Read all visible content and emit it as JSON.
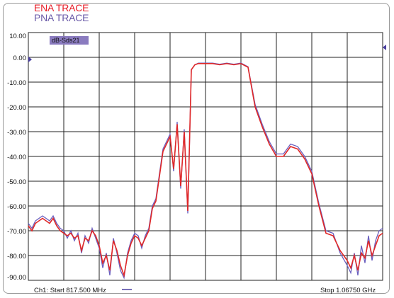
{
  "legend": {
    "ena_label": "ENA TRACE",
    "pna_label": "PNA TRACE"
  },
  "colors": {
    "ena": "#e02828",
    "pna": "#6a5fbf",
    "grid": "#202020",
    "badge_bg": "#8a7bbf"
  },
  "chart_data": {
    "type": "line",
    "trace_label": "dB-Sds21",
    "ylim": [
      -90,
      10
    ],
    "yticks": [
      "10.00",
      "0.00",
      "-10.00",
      "-20.00",
      "-30.00",
      "-40.00",
      "-50.00",
      "-60.00",
      "-70.00",
      "-80.00",
      "-90.00"
    ],
    "xlim": [
      0,
      10
    ],
    "x_divisions": 10,
    "grid": true,
    "start_label": "Ch1: Start  817.500 MHz",
    "stop_label": "Stop  1.06750 GHz",
    "series": [
      {
        "key": "ena",
        "x": [
          0,
          0.1,
          0.2,
          0.3,
          0.4,
          0.5,
          0.6,
          0.7,
          0.8,
          0.9,
          1.0,
          1.1,
          1.2,
          1.3,
          1.4,
          1.5,
          1.6,
          1.7,
          1.8,
          1.9,
          2.0,
          2.1,
          2.2,
          2.3,
          2.4,
          2.5,
          2.6,
          2.7,
          2.8,
          2.9,
          3.0,
          3.1,
          3.2,
          3.3,
          3.4,
          3.5,
          3.6,
          3.7,
          3.8,
          3.9,
          4.0,
          4.1,
          4.2,
          4.3,
          4.4,
          4.5,
          4.6,
          4.7,
          4.8,
          4.9,
          5.0,
          5.2,
          5.4,
          5.6,
          5.8,
          6.0,
          6.2,
          6.4,
          6.6,
          6.8,
          7.0,
          7.2,
          7.4,
          7.6,
          7.8,
          8.0,
          8.2,
          8.4,
          8.6,
          8.8,
          9.0,
          9.1,
          9.2,
          9.3,
          9.4,
          9.5,
          9.6,
          9.7,
          9.8,
          9.9,
          10.0
        ],
        "y": [
          -68,
          -70,
          -67,
          -66,
          -65,
          -66,
          -67,
          -65,
          -68,
          -70,
          -71,
          -72,
          -71,
          -73,
          -72,
          -78,
          -73,
          -74,
          -70,
          -72,
          -76,
          -83,
          -80,
          -86,
          -74,
          -78,
          -84,
          -88,
          -80,
          -75,
          -72,
          -73,
          -76,
          -73,
          -70,
          -61,
          -58,
          -48,
          -38,
          -35,
          -32,
          -45,
          -27,
          -52,
          -30,
          -62,
          -5,
          -3,
          -2.5,
          -2.5,
          -2.5,
          -2.5,
          -3,
          -2.5,
          -3,
          -2.5,
          -4,
          -20,
          -28,
          -35,
          -40,
          -40,
          -36,
          -37,
          -41,
          -47,
          -60,
          -71,
          -72,
          -78,
          -82,
          -85,
          -80,
          -86,
          -79,
          -81,
          -74,
          -80,
          -76,
          -72,
          -71
        ]
      },
      {
        "key": "pna",
        "x": [
          0,
          0.1,
          0.2,
          0.3,
          0.4,
          0.5,
          0.6,
          0.7,
          0.8,
          0.9,
          1.0,
          1.1,
          1.2,
          1.3,
          1.4,
          1.5,
          1.6,
          1.7,
          1.8,
          1.9,
          2.0,
          2.1,
          2.2,
          2.3,
          2.4,
          2.5,
          2.6,
          2.7,
          2.8,
          2.9,
          3.0,
          3.1,
          3.2,
          3.3,
          3.4,
          3.5,
          3.6,
          3.7,
          3.8,
          3.9,
          4.0,
          4.1,
          4.2,
          4.3,
          4.4,
          4.5,
          4.6,
          4.7,
          4.8,
          4.9,
          5.0,
          5.2,
          5.4,
          5.6,
          5.8,
          6.0,
          6.2,
          6.4,
          6.6,
          6.8,
          7.0,
          7.2,
          7.4,
          7.6,
          7.8,
          8.0,
          8.2,
          8.4,
          8.6,
          8.8,
          9.0,
          9.1,
          9.2,
          9.3,
          9.4,
          9.5,
          9.6,
          9.7,
          9.8,
          9.9,
          10.0
        ],
        "y": [
          -67,
          -69,
          -66,
          -65,
          -64,
          -65,
          -66,
          -64,
          -67,
          -69,
          -70,
          -73,
          -70,
          -74,
          -71,
          -79,
          -72,
          -75,
          -69,
          -73,
          -77,
          -85,
          -79,
          -88,
          -73,
          -79,
          -86,
          -89,
          -79,
          -74,
          -71,
          -72,
          -77,
          -72,
          -69,
          -60,
          -57,
          -47,
          -37,
          -34,
          -31,
          -46,
          -26,
          -53,
          -29,
          -63,
          -5,
          -3,
          -2.3,
          -2.3,
          -2.3,
          -2.3,
          -2.8,
          -2.3,
          -2.8,
          -2.3,
          -3.8,
          -19,
          -27,
          -34,
          -39,
          -39,
          -35,
          -36,
          -40,
          -46,
          -59,
          -70,
          -71,
          -79,
          -84,
          -87,
          -79,
          -88,
          -76,
          -83,
          -72,
          -82,
          -74,
          -70,
          -69
        ]
      }
    ]
  }
}
